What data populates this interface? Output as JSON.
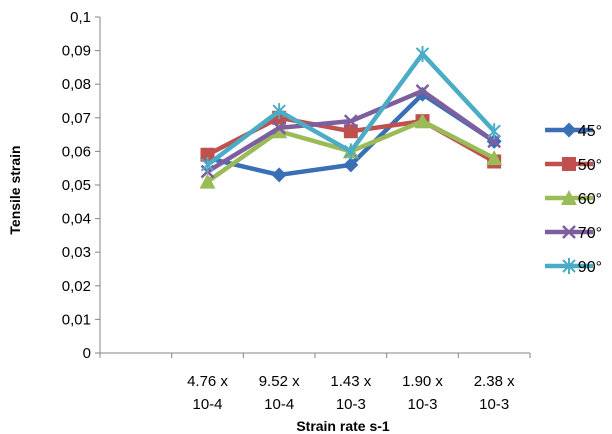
{
  "chart_data": {
    "type": "line",
    "xlabel": "Strain rate s-1",
    "ylabel": "Tensile strain",
    "ylim": [
      0,
      0.1
    ],
    "yticks": [
      "0",
      "0,01",
      "0,02",
      "0,03",
      "0,04",
      "0,05",
      "0,06",
      "0,07",
      "0,08",
      "0,09",
      "0,1"
    ],
    "categories": [
      [
        "4.76 x",
        "10-4"
      ],
      [
        "9.52 x",
        "10-4"
      ],
      [
        "1.43 x",
        "10-3"
      ],
      [
        "1.90 x",
        "10-3"
      ],
      [
        "2.38 x",
        "10-3"
      ]
    ],
    "grid": false,
    "legend_position": "right",
    "series": [
      {
        "name": "45°",
        "color": "#3A6FB5",
        "marker": "diamond",
        "values": [
          0.058,
          0.053,
          0.056,
          0.077,
          0.063
        ]
      },
      {
        "name": "50°",
        "color": "#C0504D",
        "marker": "square",
        "values": [
          0.059,
          0.07,
          0.066,
          0.069,
          0.057
        ]
      },
      {
        "name": "60°",
        "color": "#9BBB59",
        "marker": "triangle",
        "values": [
          0.051,
          0.066,
          0.06,
          0.069,
          0.058
        ]
      },
      {
        "name": "70°",
        "color": "#7D5FA0",
        "marker": "x",
        "values": [
          0.054,
          0.067,
          0.069,
          0.078,
          0.063
        ]
      },
      {
        "name": "90°",
        "color": "#4BACC6",
        "marker": "star",
        "values": [
          0.056,
          0.072,
          0.06,
          0.089,
          0.066
        ]
      }
    ]
  }
}
